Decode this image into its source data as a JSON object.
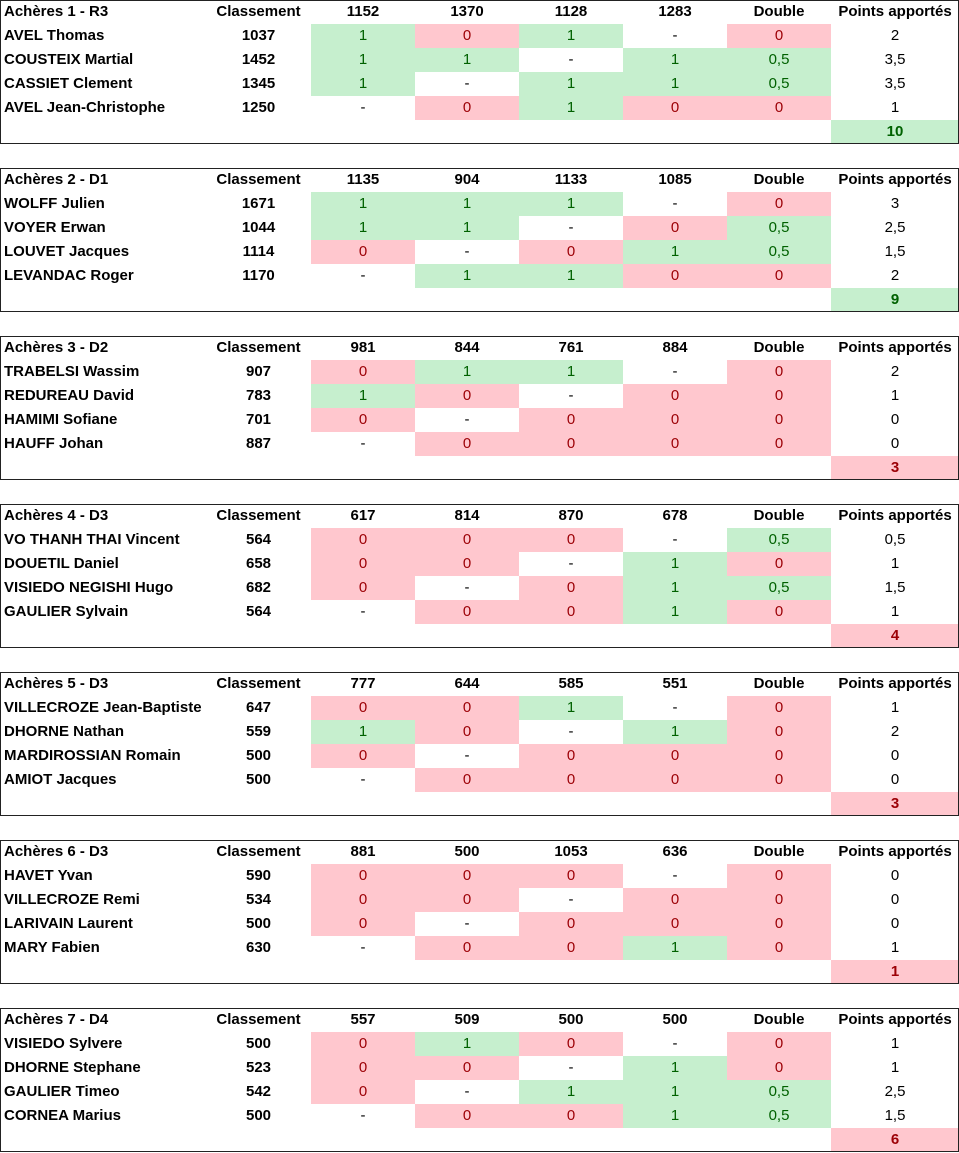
{
  "header_labels": {
    "rank": "Classement",
    "double": "Double",
    "points": "Points apportés"
  },
  "colors": {
    "win_bg": "#c6efce",
    "win_text": "#006100",
    "loss_bg": "#ffc7ce",
    "loss_text": "#9c0006"
  },
  "teams": [
    {
      "name": "Achères 1 - R3",
      "opponents": [
        "1152",
        "1370",
        "1128",
        "1283"
      ],
      "total": "10",
      "total_status": "win",
      "players": [
        {
          "name": "AVEL Thomas",
          "rank": "1037",
          "results": [
            "1",
            "0",
            "1",
            "-"
          ],
          "double": "0",
          "points": "2"
        },
        {
          "name": "COUSTEIX Martial",
          "rank": "1452",
          "results": [
            "1",
            "1",
            "-",
            "1"
          ],
          "double": "0,5",
          "points": "3,5"
        },
        {
          "name": "CASSIET Clement",
          "rank": "1345",
          "results": [
            "1",
            "-",
            "1",
            "1"
          ],
          "double": "0,5",
          "points": "3,5"
        },
        {
          "name": "AVEL Jean-Christophe",
          "rank": "1250",
          "results": [
            "-",
            "0",
            "1",
            "0"
          ],
          "double": "0",
          "points": "1"
        }
      ]
    },
    {
      "name": "Achères 2 - D1",
      "opponents": [
        "1135",
        "904",
        "1133",
        "1085"
      ],
      "total": "9",
      "total_status": "win",
      "players": [
        {
          "name": "WOLFF Julien",
          "rank": "1671",
          "results": [
            "1",
            "1",
            "1",
            "-"
          ],
          "double": "0",
          "points": "3"
        },
        {
          "name": "VOYER Erwan",
          "rank": "1044",
          "results": [
            "1",
            "1",
            "-",
            "0"
          ],
          "double": "0,5",
          "points": "2,5"
        },
        {
          "name": "LOUVET Jacques",
          "rank": "1114",
          "results": [
            "0",
            "-",
            "0",
            "1"
          ],
          "double": "0,5",
          "points": "1,5"
        },
        {
          "name": "LEVANDAC Roger",
          "rank": "1170",
          "results": [
            "-",
            "1",
            "1",
            "0"
          ],
          "double": "0",
          "points": "2"
        }
      ]
    },
    {
      "name": "Achères 3 - D2",
      "opponents": [
        "981",
        "844",
        "761",
        "884"
      ],
      "total": "3",
      "total_status": "loss",
      "players": [
        {
          "name": "TRABELSI Wassim",
          "rank": "907",
          "results": [
            "0",
            "1",
            "1",
            "-"
          ],
          "double": "0",
          "points": "2"
        },
        {
          "name": "REDUREAU David",
          "rank": "783",
          "results": [
            "1",
            "0",
            "-",
            "0"
          ],
          "double": "0",
          "points": "1"
        },
        {
          "name": "HAMIMI Sofiane",
          "rank": "701",
          "results": [
            "0",
            "-",
            "0",
            "0"
          ],
          "double": "0",
          "points": "0"
        },
        {
          "name": "HAUFF Johan",
          "rank": "887",
          "results": [
            "-",
            "0",
            "0",
            "0"
          ],
          "double": "0",
          "points": "0"
        }
      ]
    },
    {
      "name": "Achères 4 - D3",
      "opponents": [
        "617",
        "814",
        "870",
        "678"
      ],
      "total": "4",
      "total_status": "loss",
      "players": [
        {
          "name": "VO THANH THAI Vincent",
          "rank": "564",
          "results": [
            "0",
            "0",
            "0",
            "-"
          ],
          "double": "0,5",
          "points": "0,5"
        },
        {
          "name": "DOUETIL Daniel",
          "rank": "658",
          "results": [
            "0",
            "0",
            "-",
            "1"
          ],
          "double": "0",
          "points": "1"
        },
        {
          "name": "VISIEDO NEGISHI Hugo",
          "rank": "682",
          "results": [
            "0",
            "-",
            "0",
            "1"
          ],
          "double": "0,5",
          "points": "1,5"
        },
        {
          "name": "GAULIER Sylvain",
          "rank": "564",
          "results": [
            "-",
            "0",
            "0",
            "1"
          ],
          "double": "0",
          "points": "1"
        }
      ]
    },
    {
      "name": "Achères 5 - D3",
      "opponents": [
        "777",
        "644",
        "585",
        "551"
      ],
      "total": "3",
      "total_status": "loss",
      "players": [
        {
          "name": "VILLECROZE Jean-Baptiste",
          "rank": "647",
          "results": [
            "0",
            "0",
            "1",
            "-"
          ],
          "double": "0",
          "points": "1"
        },
        {
          "name": "DHORNE Nathan",
          "rank": "559",
          "results": [
            "1",
            "0",
            "-",
            "1"
          ],
          "double": "0",
          "points": "2"
        },
        {
          "name": "MARDIROSSIAN Romain",
          "rank": "500",
          "results": [
            "0",
            "-",
            "0",
            "0"
          ],
          "double": "0",
          "points": "0"
        },
        {
          "name": "AMIOT Jacques",
          "rank": "500",
          "results": [
            "-",
            "0",
            "0",
            "0"
          ],
          "double": "0",
          "points": "0"
        }
      ]
    },
    {
      "name": "Achères 6 - D3",
      "opponents": [
        "881",
        "500",
        "1053",
        "636"
      ],
      "total": "1",
      "total_status": "loss",
      "players": [
        {
          "name": "HAVET Yvan",
          "rank": "590",
          "results": [
            "0",
            "0",
            "0",
            "-"
          ],
          "double": "0",
          "points": "0"
        },
        {
          "name": "VILLECROZE Remi",
          "rank": "534",
          "results": [
            "0",
            "0",
            "-",
            "0"
          ],
          "double": "0",
          "points": "0"
        },
        {
          "name": "LARIVAIN Laurent",
          "rank": "500",
          "results": [
            "0",
            "-",
            "0",
            "0"
          ],
          "double": "0",
          "points": "0"
        },
        {
          "name": "MARY Fabien",
          "rank": "630",
          "results": [
            "-",
            "0",
            "0",
            "1"
          ],
          "double": "0",
          "points": "1"
        }
      ]
    },
    {
      "name": "Achères 7 - D4",
      "opponents": [
        "557",
        "509",
        "500",
        "500"
      ],
      "total": "6",
      "total_status": "loss",
      "players": [
        {
          "name": "VISIEDO Sylvere",
          "rank": "500",
          "results": [
            "0",
            "1",
            "0",
            "-"
          ],
          "double": "0",
          "points": "1"
        },
        {
          "name": "DHORNE Stephane",
          "rank": "523",
          "results": [
            "0",
            "0",
            "-",
            "1"
          ],
          "double": "0",
          "points": "1"
        },
        {
          "name": "GAULIER Timeo",
          "rank": "542",
          "results": [
            "0",
            "-",
            "1",
            "1"
          ],
          "double": "0,5",
          "points": "2,5"
        },
        {
          "name": "CORNEA Marius",
          "rank": "500",
          "results": [
            "-",
            "0",
            "0",
            "1"
          ],
          "double": "0,5",
          "points": "1,5"
        }
      ]
    }
  ]
}
